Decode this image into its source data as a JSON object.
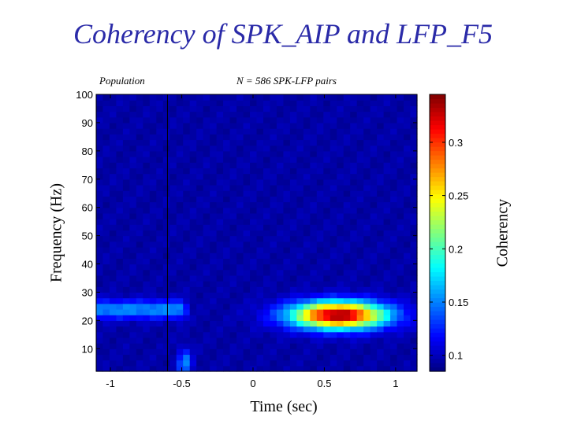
{
  "title": "Coherency of SPK_AIP and LFP_F5",
  "subtitle_left": "Population",
  "subtitle_right": "N = 586 SPK-LFP pairs",
  "chart_data": {
    "type": "heatmap",
    "xlabel": "Time (sec)",
    "ylabel": "Frequency (Hz)",
    "colorbar_label": "Coherency",
    "xlim": [
      -1.1,
      1.15
    ],
    "ylim": [
      2,
      100
    ],
    "x_ticks": [
      -1,
      -0.5,
      0,
      0.5,
      1
    ],
    "x_tick_labels": [
      "-1",
      "-0.5",
      "0",
      "0.5",
      "1"
    ],
    "y_ticks": [
      10,
      20,
      30,
      40,
      50,
      60,
      70,
      80,
      90,
      100
    ],
    "y_tick_labels": [
      "10",
      "20",
      "30",
      "40",
      "50",
      "60",
      "70",
      "80",
      "90",
      "100"
    ],
    "clim": [
      0.085,
      0.345
    ],
    "colorbar_ticks": [
      0.1,
      0.15,
      0.2,
      0.25,
      0.3
    ],
    "colorbar_tick_labels": [
      "0.1",
      "0.15",
      "0.2",
      "0.25",
      "0.3"
    ],
    "colormap": "jet",
    "background_coherency": 0.095,
    "vertical_marker_x": -0.6,
    "features": [
      {
        "name": "pre-event beta band",
        "t_start": -1.1,
        "t_end": -0.5,
        "freq_center": 24,
        "freq_halfwidth": 4,
        "peak_coherency": 0.155
      },
      {
        "name": "post-event beta burst",
        "t_center": 0.6,
        "t_halfwidth": 0.42,
        "freq_center": 22,
        "freq_halfwidth": 6,
        "peak_coherency": 0.34
      },
      {
        "name": "low-frequency spot",
        "t_center": -0.48,
        "t_halfwidth": 0.06,
        "freq_center": 5,
        "freq_halfwidth": 6,
        "peak_coherency": 0.155
      }
    ]
  }
}
